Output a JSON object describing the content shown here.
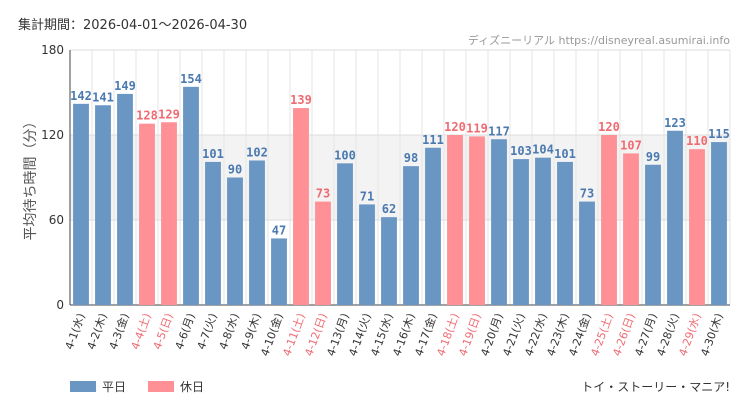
{
  "header": {
    "period_text": "集計期間：2026-04-01～2026-04-30",
    "credit": "ディズニーリアル https://disneyreal.asumirai.info"
  },
  "footer": {
    "attraction": "トイ・ストーリー・マニア!"
  },
  "colors": {
    "weekday": "#6a96c4",
    "holiday": "#ff9095",
    "weekday_label": "#4a7ab0",
    "holiday_label": "#ef6b72"
  },
  "chart_data": {
    "type": "bar",
    "ylabel": "平均待ち時間（分）",
    "ylim": [
      0,
      180
    ],
    "yticks": [
      0,
      60,
      120,
      180
    ],
    "grid": true,
    "legend_position": "bottom-left",
    "highlight_band": [
      60,
      120
    ],
    "series_names": {
      "weekday": "平日",
      "holiday": "休日"
    },
    "categories": [
      "4-1(水)",
      "4-2(木)",
      "4-3(金)",
      "4-4(土)",
      "4-5(日)",
      "4-6(月)",
      "4-7(火)",
      "4-8(水)",
      "4-9(木)",
      "4-10(金)",
      "4-11(土)",
      "4-12(日)",
      "4-13(月)",
      "4-14(火)",
      "4-15(水)",
      "4-16(木)",
      "4-17(金)",
      "4-18(土)",
      "4-19(日)",
      "4-20(月)",
      "4-21(火)",
      "4-22(水)",
      "4-23(木)",
      "4-24(金)",
      "4-25(土)",
      "4-26(日)",
      "4-27(月)",
      "4-28(火)",
      "4-29(水)",
      "4-30(木)"
    ],
    "values": [
      142,
      141,
      149,
      128,
      129,
      154,
      101,
      90,
      102,
      47,
      139,
      73,
      100,
      71,
      62,
      98,
      111,
      120,
      119,
      117,
      103,
      104,
      101,
      73,
      120,
      107,
      99,
      123,
      110,
      115
    ],
    "day_type": [
      "weekday",
      "weekday",
      "weekday",
      "holiday",
      "holiday",
      "weekday",
      "weekday",
      "weekday",
      "weekday",
      "weekday",
      "holiday",
      "holiday",
      "weekday",
      "weekday",
      "weekday",
      "weekday",
      "weekday",
      "holiday",
      "holiday",
      "weekday",
      "weekday",
      "weekday",
      "weekday",
      "weekday",
      "holiday",
      "holiday",
      "weekday",
      "weekday",
      "holiday",
      "weekday"
    ]
  }
}
